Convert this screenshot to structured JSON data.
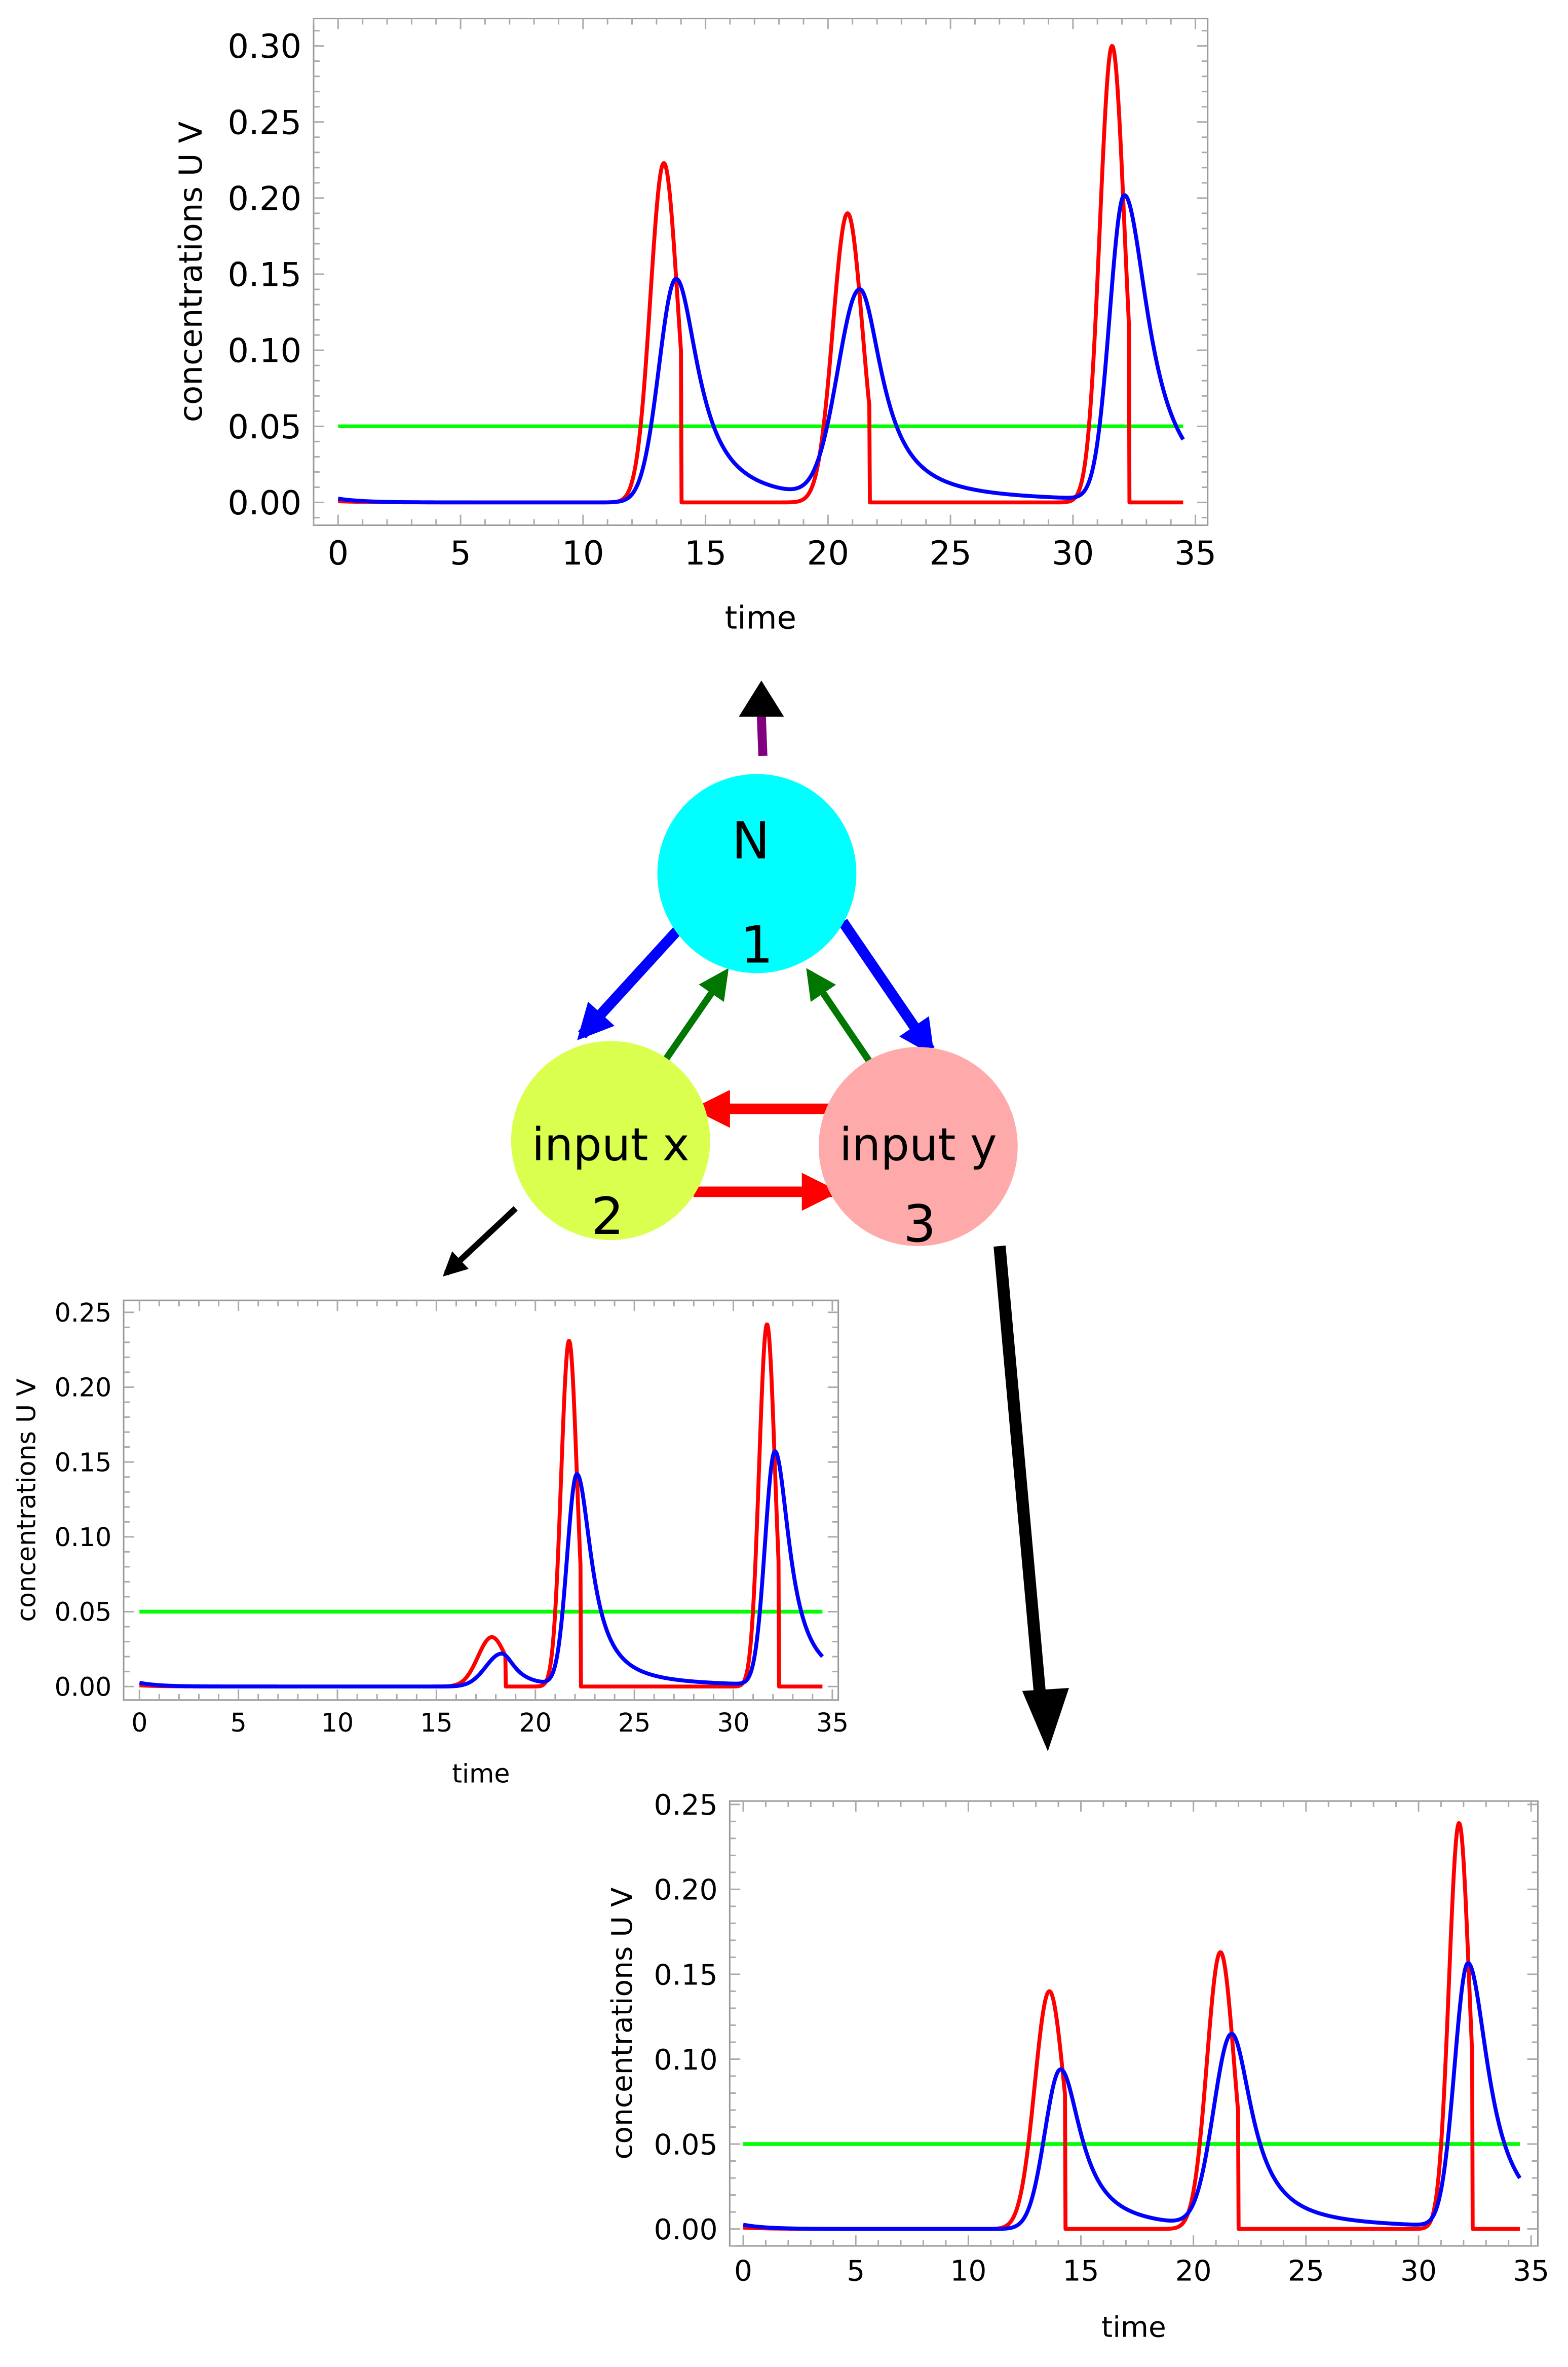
{
  "colors": {
    "u_series": "#ff0000",
    "v_series": "#0000ff",
    "threshold": "#00ff00",
    "node_n": "#00ffff",
    "node_x": "#dbff4f",
    "node_y": "#ffaaaa",
    "edge_blue": "#0000ff",
    "edge_green": "#007700",
    "edge_red": "#ff0000",
    "edge_purple": "#800080",
    "edge_black": "#000000"
  },
  "network": {
    "nodes": [
      {
        "id": "n",
        "name": "N",
        "number": "1",
        "icon": "node-circle"
      },
      {
        "id": "x",
        "name": "input x",
        "number": "2",
        "icon": "node-circle"
      },
      {
        "id": "y",
        "name": "input y",
        "number": "3",
        "icon": "node-circle"
      }
    ],
    "edges": [
      {
        "from": "n",
        "to": "x",
        "color": "blue"
      },
      {
        "from": "n",
        "to": "y",
        "color": "blue"
      },
      {
        "from": "x",
        "to": "n",
        "color": "green"
      },
      {
        "from": "y",
        "to": "n",
        "color": "green"
      },
      {
        "from": "x",
        "to": "y",
        "color": "red"
      },
      {
        "from": "y",
        "to": "x",
        "color": "red"
      },
      {
        "from": "n",
        "to": "plot-top",
        "color": "purple-black"
      },
      {
        "from": "x",
        "to": "plot-left",
        "color": "black"
      },
      {
        "from": "y",
        "to": "plot-bottom-right",
        "color": "black"
      }
    ]
  },
  "chart_data": [
    {
      "id": "plot-top",
      "type": "line",
      "title": "",
      "xlabel": "time",
      "ylabel": "concentrations U V",
      "xlim": [
        -1,
        35.5
      ],
      "ylim": [
        -0.015,
        0.318
      ],
      "xticks": [
        0,
        5,
        10,
        15,
        20,
        25,
        30,
        35
      ],
      "yticks": [
        0.0,
        0.05,
        0.1,
        0.15,
        0.2,
        0.25,
        0.3
      ],
      "ytick_labels": [
        "0.00",
        "0.05",
        "0.10",
        "0.15",
        "0.20",
        "0.25",
        "0.30"
      ],
      "threshold": 0.05,
      "x_end": 34.5,
      "series": [
        {
          "name": "U",
          "color": "#ff0000",
          "peaks": [
            {
              "t": 13.3,
              "a": 0.223,
              "w": 0.55,
              "cut": 14.0
            },
            {
              "t": 20.8,
              "a": 0.19,
              "w": 0.6,
              "cut": 21.7
            },
            {
              "t": 31.6,
              "a": 0.3,
              "w": 0.5,
              "cut": 32.3
            }
          ]
        },
        {
          "name": "V",
          "color": "#0000ff",
          "peaks": [
            {
              "t": 13.8,
              "a": 0.147,
              "rise": 0.7,
              "decay": 1.1
            },
            {
              "t": 21.3,
              "a": 0.137,
              "rise": 0.9,
              "decay": 1.1
            },
            {
              "t": 32.1,
              "a": 0.2,
              "rise": 0.6,
              "decay": 1.2
            }
          ]
        }
      ]
    },
    {
      "id": "plot-left",
      "type": "line",
      "title": "",
      "xlabel": "time",
      "ylabel": "concentrations U V",
      "xlim": [
        -0.8,
        35.3
      ],
      "ylim": [
        -0.009,
        0.258
      ],
      "xticks": [
        0,
        5,
        10,
        15,
        20,
        25,
        30,
        35
      ],
      "yticks": [
        0.0,
        0.05,
        0.1,
        0.15,
        0.2,
        0.25
      ],
      "ytick_labels": [
        "0.00",
        "0.05",
        "0.10",
        "0.15",
        "0.20",
        "0.25"
      ],
      "threshold": 0.05,
      "x_end": 34.5,
      "series": [
        {
          "name": "U",
          "color": "#ff0000",
          "peaks": [
            {
              "t": 17.8,
              "a": 0.033,
              "w": 0.7,
              "cut": 18.5
            },
            {
              "t": 21.7,
              "a": 0.231,
              "w": 0.4,
              "cut": 22.3
            },
            {
              "t": 31.7,
              "a": 0.242,
              "w": 0.4,
              "cut": 32.3
            }
          ]
        },
        {
          "name": "V",
          "color": "#0000ff",
          "peaks": [
            {
              "t": 18.3,
              "a": 0.022,
              "rise": 0.8,
              "decay": 0.8
            },
            {
              "t": 22.1,
              "a": 0.141,
              "rise": 0.5,
              "decay": 0.9
            },
            {
              "t": 32.1,
              "a": 0.156,
              "rise": 0.5,
              "decay": 0.9
            }
          ]
        }
      ]
    },
    {
      "id": "plot-bottom-right",
      "type": "line",
      "title": "",
      "xlabel": "time",
      "ylabel": "concentrations U V",
      "xlim": [
        -0.6,
        35.3
      ],
      "ylim": [
        -0.01,
        0.252
      ],
      "xticks": [
        0,
        5,
        10,
        15,
        20,
        25,
        30,
        35
      ],
      "yticks": [
        0.0,
        0.05,
        0.1,
        0.15,
        0.2,
        0.25
      ],
      "ytick_labels": [
        "0.00",
        "0.05",
        "0.10",
        "0.15",
        "0.20",
        "0.25"
      ],
      "threshold": 0.05,
      "x_end": 34.5,
      "series": [
        {
          "name": "U",
          "color": "#ff0000",
          "peaks": [
            {
              "t": 13.6,
              "a": 0.14,
              "w": 0.65,
              "cut": 14.3
            },
            {
              "t": 21.2,
              "a": 0.163,
              "w": 0.6,
              "cut": 22.0
            },
            {
              "t": 31.8,
              "a": 0.239,
              "w": 0.45,
              "cut": 32.4
            }
          ]
        },
        {
          "name": "V",
          "color": "#0000ff",
          "peaks": [
            {
              "t": 14.1,
              "a": 0.094,
              "rise": 0.7,
              "decay": 1.1
            },
            {
              "t": 21.7,
              "a": 0.113,
              "rise": 0.8,
              "decay": 1.1
            },
            {
              "t": 32.2,
              "a": 0.155,
              "rise": 0.6,
              "decay": 1.1
            }
          ]
        }
      ]
    }
  ]
}
